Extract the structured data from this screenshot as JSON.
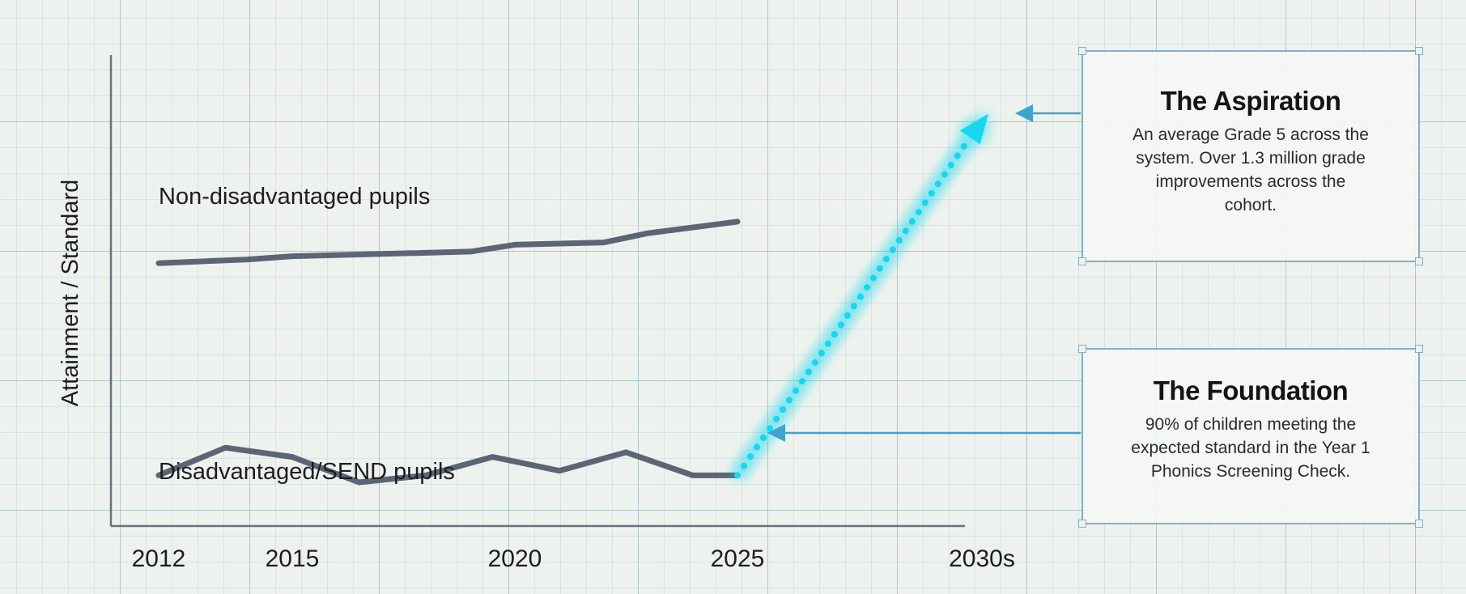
{
  "chart_data": {
    "type": "line",
    "ylabel": "Attainment / Standard",
    "x_tick_labels": [
      "2012",
      "2015",
      "2020",
      "2025",
      "2030s"
    ],
    "series": [
      {
        "name": "Non-disadvantaged pupils",
        "color": "#5c6575",
        "x": [
          2012,
          2014,
          2015,
          2017,
          2019,
          2020,
          2022,
          2023,
          2025
        ],
        "y": [
          64.0,
          64.8,
          65.5,
          66.0,
          66.5,
          68.0,
          68.5,
          70.5,
          73.0
        ]
      },
      {
        "name": "Disadvantaged/SEND pupils",
        "color": "#5c6575",
        "x": [
          2012,
          2013.5,
          2015,
          2016.5,
          2018,
          2019.5,
          2021,
          2022.5,
          2024,
          2025
        ],
        "y": [
          18.0,
          24.0,
          22.0,
          16.5,
          18.0,
          22.0,
          19.0,
          23.0,
          18.0,
          18.0
        ]
      },
      {
        "style": "dotted",
        "color": "#19d7ef",
        "x": [
          2025,
          2030
        ],
        "y": [
          18.0,
          95.0
        ]
      }
    ],
    "grid": true
  },
  "cards": {
    "aspiration": {
      "title": "The Aspiration",
      "body": "An average Grade 5 across the system. Over 1.3 million grade improvements across the cohort."
    },
    "foundation": {
      "title": "The Foundation",
      "body": "90% of children meeting the expected standard in the Year 1 Phonics Screening Check."
    }
  },
  "colors": {
    "line": "#5c6575",
    "projection": "#19d7ef",
    "callout_arrow": "#3ea3cf",
    "card_border": "#7fb0c8"
  }
}
